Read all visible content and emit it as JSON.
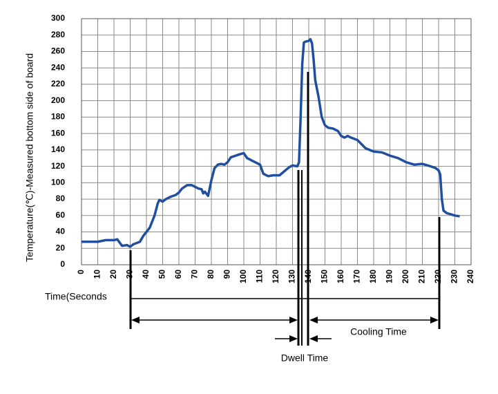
{
  "chart_data": {
    "type": "line",
    "y_label": "Temperature(℃)-Measured bottom side of board",
    "x_label": "Time(Seconds",
    "annotations": [
      "Cooling Time",
      "Dwell Time"
    ],
    "xlim": [
      0,
      240
    ],
    "xticks": [
      0,
      10,
      20,
      30,
      40,
      50,
      60,
      70,
      80,
      90,
      100,
      110,
      120,
      130,
      140,
      150,
      160,
      170,
      180,
      190,
      200,
      210,
      220,
      230,
      240
    ],
    "ylim": [
      0,
      300
    ],
    "yticks": [
      0,
      20,
      40,
      60,
      80,
      100,
      120,
      140,
      160,
      180,
      200,
      220,
      240,
      260,
      280,
      300
    ],
    "grid": true,
    "series": [
      {
        "color": "#1f4f9e",
        "x": [
          0,
          10,
          15,
          20,
          22,
          25,
          28,
          30,
          32,
          36,
          38,
          42,
          45,
          47,
          48,
          50,
          52,
          55,
          58,
          60,
          62,
          65,
          68,
          72,
          74,
          75,
          76,
          78,
          80,
          82,
          84,
          86,
          88,
          90,
          92,
          95,
          98,
          100,
          102,
          105,
          110,
          112,
          115,
          118,
          122,
          125,
          128,
          130,
          133,
          134,
          135,
          136,
          137,
          138,
          140,
          141,
          142,
          143,
          144,
          146,
          148,
          150,
          152,
          155,
          158,
          160,
          162,
          164,
          166,
          170,
          175,
          180,
          185,
          190,
          195,
          200,
          205,
          210,
          215,
          218,
          220,
          221,
          222,
          223,
          225,
          230,
          233
        ],
        "values": [
          28,
          28,
          30,
          30,
          31,
          23,
          24,
          22,
          25,
          28,
          35,
          45,
          60,
          75,
          79,
          77,
          80,
          83,
          85,
          88,
          93,
          97,
          97,
          93,
          92,
          87,
          89,
          84,
          103,
          118,
          122,
          123,
          122,
          125,
          131,
          133,
          135,
          136,
          130,
          127,
          122,
          111,
          108,
          109,
          109,
          114,
          119,
          121,
          120,
          125,
          180,
          245,
          271,
          272,
          273,
          275,
          270,
          250,
          225,
          205,
          180,
          170,
          167,
          166,
          163,
          157,
          155,
          157,
          155,
          152,
          142,
          138,
          137,
          133,
          130,
          125,
          122,
          123,
          120,
          118,
          115,
          110,
          80,
          66,
          63,
          60,
          59
        ]
      }
    ]
  }
}
